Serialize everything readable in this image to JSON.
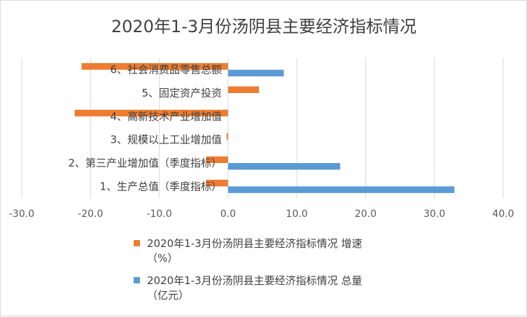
{
  "chart_data": {
    "type": "bar",
    "orientation": "horizontal",
    "title": "2020年1-3月份汤阴县主要经济指标情况",
    "categories": [
      "1、生产总值（季度指标）",
      "2、第三产业增加值（季度指标）",
      "3、规模以上工业增加值",
      "4、高新技术产业增加值",
      "5、固定资产投资",
      "6、社会消费品零售总额"
    ],
    "series": [
      {
        "name": "2020年1-3月份汤阴县主要经济指标情况 增速（%）",
        "name_lines": [
          "2020年1-3月份汤阴县主要经济指标情况 增速",
          "（%）"
        ],
        "color": "#ED7D31",
        "values": [
          -3.2,
          -3.2,
          -0.2,
          -22.3,
          4.5,
          -21.3
        ]
      },
      {
        "name": "2020年1-3月份汤阴县主要经济指标情况 总量（亿元）",
        "name_lines": [
          "2020年1-3月份汤阴县主要经济指标情况 总量",
          "（亿元）"
        ],
        "color": "#5B9BD5",
        "values": [
          32.9,
          16.3,
          null,
          null,
          null,
          8.1
        ]
      }
    ],
    "xlim": [
      -30,
      40
    ],
    "xticks": [
      -30,
      -20,
      -10,
      0,
      10,
      20,
      30,
      40
    ],
    "xtick_labels": [
      "-30.0",
      "-20.0",
      "-10.0",
      "0.0",
      "10.0",
      "20.0",
      "30.0",
      "40.0"
    ],
    "grid": true,
    "legend_position": "bottom"
  }
}
